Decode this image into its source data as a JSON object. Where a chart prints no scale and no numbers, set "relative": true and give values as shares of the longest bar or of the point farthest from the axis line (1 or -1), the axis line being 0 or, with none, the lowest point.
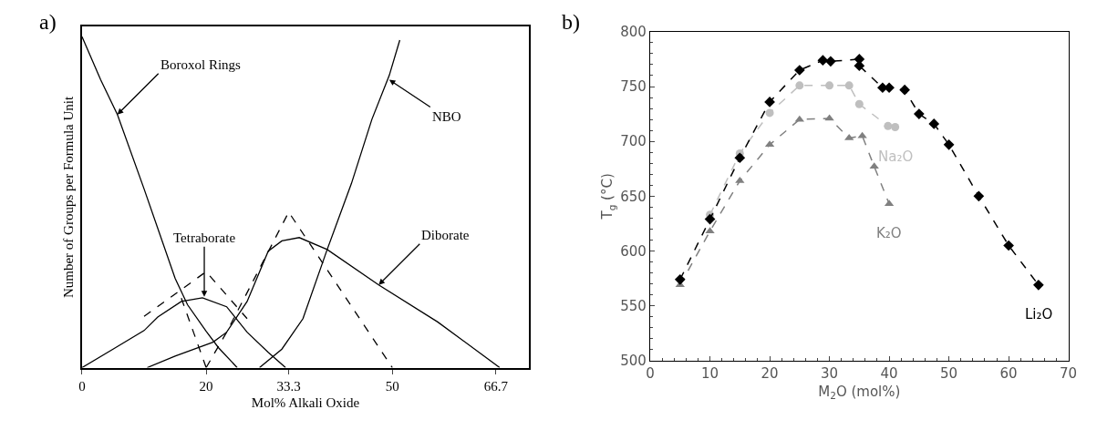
{
  "chart_data": [
    {
      "type": "line",
      "title": "a)",
      "xlabel": "Mol% Alkali Oxide",
      "ylabel": "Number of Groups per Formula Unit",
      "relative": true,
      "xlim": [
        0,
        72
      ],
      "xticks": [
        0,
        20,
        33.3,
        50,
        66.7
      ],
      "tick_labels": "x",
      "marker": "none",
      "series": [
        {
          "color": "#000000",
          "line_style": "solid",
          "x": [
            0,
            3,
            5.7,
            10,
            15,
            17,
            20,
            22,
            25
          ],
          "values": [
            1.0,
            0.87,
            0.765,
            0.54,
            0.27,
            0.19,
            0.11,
            0.06,
            0
          ]
        },
        {
          "color": "#000000",
          "line_style": "solid",
          "x": [
            0,
            5,
            10,
            12.2,
            16,
            19.4,
            23.3,
            26.6,
            30,
            32.8
          ],
          "values": [
            0,
            0.056,
            0.112,
            0.153,
            0.2,
            0.211,
            0.184,
            0.107,
            0.046,
            0
          ]
        },
        {
          "color": "#000000",
          "line_style": "solid",
          "x": [
            10.5,
            15,
            21.1,
            23.3,
            26.6,
            30,
            32.2,
            35,
            39.5,
            47.8,
            57.3,
            67.3
          ],
          "values": [
            0,
            0.035,
            0.077,
            0.107,
            0.2,
            0.352,
            0.383,
            0.393,
            0.357,
            0.25,
            0.138,
            0
          ]
        },
        {
          "color": "#000000",
          "line_style": "solid",
          "x": [
            28.6,
            32.2,
            35.6,
            39.5,
            43.4,
            46.7,
            49.5,
            51.2
          ],
          "values": [
            0,
            0.056,
            0.148,
            0.357,
            0.556,
            0.75,
            0.883,
            0.99
          ]
        },
        {
          "color": "#000000",
          "line_style": "dashed",
          "x": [
            10,
            20,
            26.6
          ],
          "values": [
            0.155,
            0.29,
            0.148
          ]
        },
        {
          "color": "#000000",
          "line_style": "dashed",
          "x": [
            20,
            23.3,
            33.3,
            50
          ],
          "values": [
            0,
            0.107,
            0.47,
            0
          ]
        },
        {
          "color": "#000000",
          "line_style": "dashed",
          "x": [
            16,
            20
          ],
          "values": [
            0.21,
            0
          ]
        }
      ],
      "annotations": [
        {
          "text": "Boroxol Rings",
          "x": 5.7,
          "y": 0.765
        },
        {
          "text": "Tetraborate",
          "x": 19.7,
          "y": 0.214
        },
        {
          "text": "Diborate",
          "x": 47.8,
          "y": 0.25
        },
        {
          "text": "NBO",
          "x": 49.5,
          "y": 0.87
        }
      ]
    },
    {
      "type": "line",
      "title": "b)",
      "xlabel": "M$_{2}$O (mol%)",
      "ylabel": "T$_{g}$ (°C)",
      "xlim": [
        0,
        70
      ],
      "xticks": [
        0,
        10,
        20,
        30,
        40,
        50,
        60,
        70
      ],
      "ylim": [
        500,
        800
      ],
      "yticks": [
        500,
        550,
        600,
        650,
        700,
        750,
        800
      ],
      "line_style": "dashed",
      "series": [
        {
          "name": "Li₂O",
          "color": "#000000",
          "marker": "diamond",
          "x": [
            5,
            10,
            15,
            20,
            25,
            28.9,
            30.2,
            35,
            35,
            38.9,
            40,
            42.6,
            45,
            47.5,
            50,
            55,
            60,
            65
          ],
          "values": [
            574,
            629,
            685,
            736,
            765,
            774,
            773,
            775,
            769,
            749,
            749,
            747,
            725,
            716,
            697,
            650,
            605,
            569
          ]
        },
        {
          "name": "Na₂O",
          "color": "#bfbfbf",
          "marker": "circle",
          "x": [
            10,
            15,
            20,
            25,
            30,
            33.3,
            35,
            39.8,
            41
          ],
          "values": [
            633,
            689,
            726,
            751,
            751,
            751,
            734,
            714,
            713
          ]
        },
        {
          "name": "K₂O",
          "color": "#808080",
          "marker": "triangle",
          "x": [
            5,
            10,
            15,
            20,
            25,
            30,
            33.3,
            35.5,
            37.5,
            40
          ],
          "values": [
            569,
            618,
            664,
            697,
            720,
            721,
            703,
            705,
            677,
            643
          ]
        }
      ]
    }
  ]
}
